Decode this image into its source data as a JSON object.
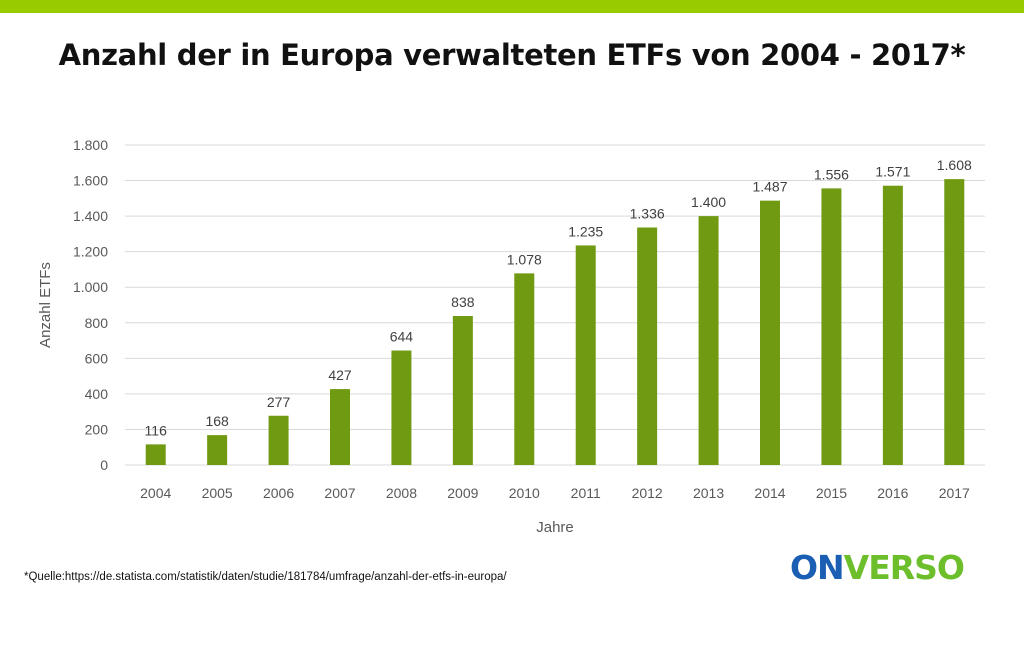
{
  "title": "Anzahl der in Europa verwalteten ETFs von 2004 - 2017*",
  "source": "*Quelle:https://de.statista.com/statistik/daten/studie/181784/umfrage/anzahl-der-etfs-in-europa/",
  "logo": {
    "part1": "ON",
    "part2": "VERSO",
    "color1": "#1a5fb4",
    "color2": "#6cbf2a"
  },
  "colors": {
    "topbar": "#99cc00",
    "bar": "#6f9a12",
    "grid": "#d9d9d9",
    "text": "#595959"
  },
  "chart_data": {
    "type": "bar",
    "categories": [
      "2004",
      "2005",
      "2006",
      "2007",
      "2008",
      "2009",
      "2010",
      "2011",
      "2012",
      "2013",
      "2014",
      "2015",
      "2016",
      "2017"
    ],
    "values": [
      116,
      168,
      277,
      427,
      644,
      838,
      1078,
      1235,
      1336,
      1400,
      1487,
      1556,
      1571,
      1608
    ],
    "data_labels": [
      "116",
      "168",
      "277",
      "427",
      "644",
      "838",
      "1.078",
      "1.235",
      "1.336",
      "1.400",
      "1.487",
      "1.556",
      "1.571",
      "1.608"
    ],
    "xlabel": "Jahre",
    "ylabel": "Anzahl ETFs",
    "ylim": [
      0,
      1800
    ],
    "yticks": [
      0,
      200,
      400,
      600,
      800,
      1000,
      1200,
      1400,
      1600,
      1800
    ],
    "ytick_labels": [
      "0",
      "200",
      "400",
      "600",
      "800",
      "1.000",
      "1.200",
      "1.400",
      "1.600",
      "1.800"
    ],
    "grid": true,
    "legend": "none"
  }
}
